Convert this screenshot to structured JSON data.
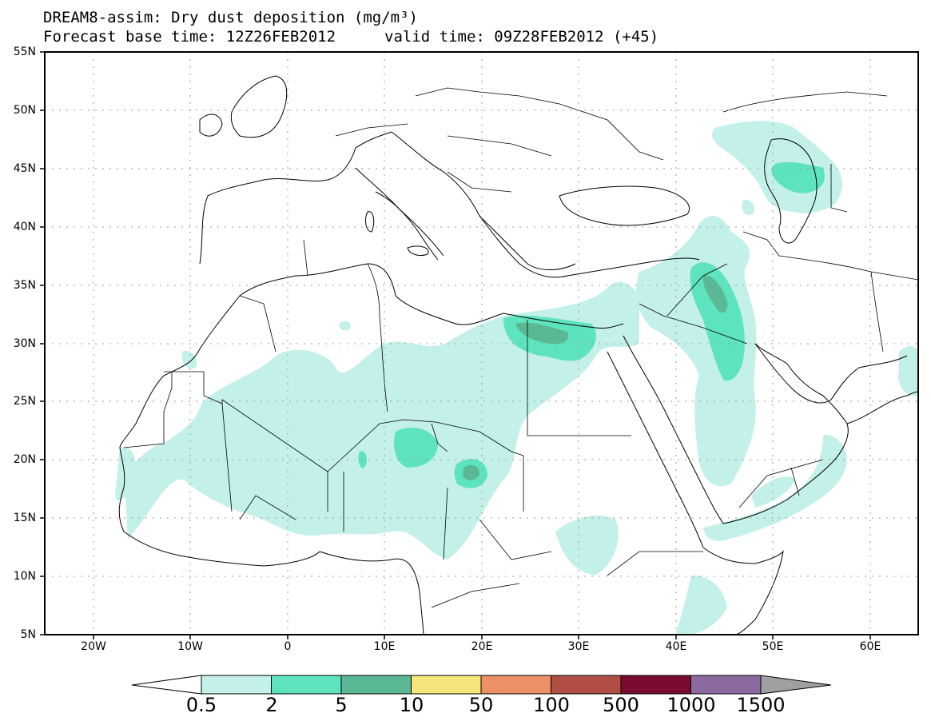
{
  "title": {
    "line1": "DREAM8-assim: Dry dust deposition (mg/m³)",
    "line2_left": "Forecast base time: 12Z26FEB2012",
    "line2_right": "valid time: 09Z28FEB2012 (+45)"
  },
  "axes": {
    "lat_labels": [
      "55N",
      "50N",
      "45N",
      "40N",
      "35N",
      "30N",
      "25N",
      "20N",
      "15N",
      "10N",
      "5N"
    ],
    "lon_labels": [
      "20W",
      "10W",
      "0",
      "10E",
      "20E",
      "30E",
      "40E",
      "50E",
      "60E"
    ]
  },
  "colorbar": {
    "labels": [
      "0.5",
      "2",
      "5",
      "10",
      "50",
      "100",
      "500",
      "1000",
      "1500"
    ],
    "colors": [
      "#c3f0e8",
      "#5de3be",
      "#5bb894",
      "#f5e57a",
      "#ec9068",
      "#b04e44",
      "#7a0a2e",
      "#8b6aa0",
      "#a0a0a0"
    ],
    "under_color": "#ffffff"
  },
  "chart_data": {
    "type": "heatmap",
    "title": "DREAM8-assim: Dry dust deposition (mg/m³)",
    "lon_range": [
      -25,
      65
    ],
    "lat_range": [
      5,
      55
    ],
    "levels": [
      0.5,
      2,
      5,
      10,
      50,
      100,
      500,
      1000,
      1500
    ]
  }
}
